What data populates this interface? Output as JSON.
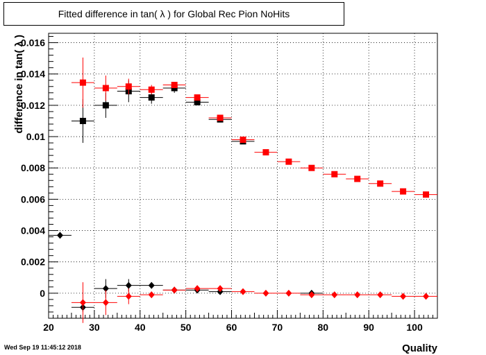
{
  "chart_data": {
    "type": "scatter",
    "title": "Fitted difference in tan( λ ) for Global Rec Pion NoHits",
    "xlabel": "Quality",
    "ylabel": "difference in tan( λ )",
    "xlim": [
      20,
      105
    ],
    "ylim": [
      -0.0016,
      0.0166
    ],
    "x_ticks": [
      20,
      30,
      40,
      50,
      60,
      70,
      80,
      90,
      100
    ],
    "y_ticks": [
      0,
      0.002,
      0.004,
      0.006,
      0.008,
      0.01,
      0.012,
      0.014,
      0.016
    ],
    "x_tick_labels": [
      "20",
      "30",
      "40",
      "50",
      "60",
      "70",
      "80",
      "90",
      "100"
    ],
    "y_tick_labels": [
      "0",
      "0.002",
      "0.004",
      "0.006",
      "0.008",
      "0.01",
      "0.012",
      "0.014",
      "0.016"
    ],
    "grid": true,
    "series": [
      {
        "marker": "square",
        "color": "#000000",
        "points": [
          {
            "x": 27.5,
            "y": 0.011,
            "yerr": 0.0014
          },
          {
            "x": 32.5,
            "y": 0.012,
            "yerr": 0.0008
          },
          {
            "x": 37.5,
            "y": 0.0129,
            "yerr": 0.0007
          },
          {
            "x": 42.5,
            "y": 0.0125,
            "yerr": 0.0004
          },
          {
            "x": 47.5,
            "y": 0.0131,
            "yerr": 0.0003
          },
          {
            "x": 52.5,
            "y": 0.0122,
            "yerr": 0.0002
          },
          {
            "x": 57.5,
            "y": 0.0111,
            "yerr": 0.0001
          },
          {
            "x": 62.5,
            "y": 0.0097,
            "yerr": 0.0001
          }
        ]
      },
      {
        "marker": "square",
        "color": "#ff0000",
        "points": [
          {
            "x": 27.5,
            "y": 0.01345,
            "yerr": 0.0016
          },
          {
            "x": 32.5,
            "y": 0.0131,
            "yerr": 0.0008
          },
          {
            "x": 37.5,
            "y": 0.0132,
            "yerr": 0.0005
          },
          {
            "x": 42.5,
            "y": 0.013,
            "yerr": 0.0003
          },
          {
            "x": 47.5,
            "y": 0.0133,
            "yerr": 0.0002
          },
          {
            "x": 52.5,
            "y": 0.0125,
            "yerr": 0.0001
          },
          {
            "x": 57.5,
            "y": 0.0112,
            "yerr": 0.0001
          },
          {
            "x": 62.5,
            "y": 0.0098,
            "yerr": 0.0001
          },
          {
            "x": 67.5,
            "y": 0.009,
            "yerr": 0.0001
          },
          {
            "x": 72.5,
            "y": 0.0084,
            "yerr": 0.0001
          },
          {
            "x": 77.5,
            "y": 0.008,
            "yerr": 0.0001
          },
          {
            "x": 82.5,
            "y": 0.0076,
            "yerr": 0.0001
          },
          {
            "x": 87.5,
            "y": 0.0073,
            "yerr": 0.0001
          },
          {
            "x": 92.5,
            "y": 0.007,
            "yerr": 0.0001
          },
          {
            "x": 97.5,
            "y": 0.0065,
            "yerr": 0.0001
          },
          {
            "x": 102.5,
            "y": 0.0063,
            "yerr": 0.0001
          }
        ]
      },
      {
        "marker": "diamond",
        "color": "#000000",
        "points": [
          {
            "x": 22.5,
            "y": 0.0037,
            "yerr": 0.0
          },
          {
            "x": 27.5,
            "y": -0.0009,
            "yerr": 0.0003
          },
          {
            "x": 32.5,
            "y": 0.0003,
            "yerr": 0.0006
          },
          {
            "x": 37.5,
            "y": 0.0005,
            "yerr": 0.0004
          },
          {
            "x": 42.5,
            "y": 0.0005,
            "yerr": 0.0002
          },
          {
            "x": 47.5,
            "y": 0.0002,
            "yerr": 0.0002
          },
          {
            "x": 52.5,
            "y": 0.0002,
            "yerr": 0.0001
          },
          {
            "x": 57.5,
            "y": 0.0001,
            "yerr": 0.0001
          },
          {
            "x": 77.5,
            "y": 0.0,
            "yerr": 0.0001
          }
        ]
      },
      {
        "marker": "diamond",
        "color": "#ff0000",
        "points": [
          {
            "x": 27.5,
            "y": -0.0006,
            "yerr": 0.0013
          },
          {
            "x": 32.5,
            "y": -0.0006,
            "yerr": 0.0008
          },
          {
            "x": 37.5,
            "y": -0.0002,
            "yerr": 0.0005
          },
          {
            "x": 42.5,
            "y": -0.0001,
            "yerr": 0.0002
          },
          {
            "x": 47.5,
            "y": 0.0002,
            "yerr": 0.0002
          },
          {
            "x": 52.5,
            "y": 0.0003,
            "yerr": 0.0001
          },
          {
            "x": 57.5,
            "y": 0.0003,
            "yerr": 0.0001
          },
          {
            "x": 62.5,
            "y": 0.0001,
            "yerr": 0.0001
          },
          {
            "x": 67.5,
            "y": 0.0,
            "yerr": 0.0001
          },
          {
            "x": 72.5,
            "y": 0.0,
            "yerr": 0.0001
          },
          {
            "x": 77.5,
            "y": -0.0001,
            "yerr": 0.0001
          },
          {
            "x": 82.5,
            "y": -0.0001,
            "yerr": 0.0001
          },
          {
            "x": 87.5,
            "y": -0.0001,
            "yerr": 0.0001
          },
          {
            "x": 92.5,
            "y": -0.0001,
            "yerr": 0.0001
          },
          {
            "x": 97.5,
            "y": -0.0002,
            "yerr": 0.0001
          },
          {
            "x": 102.5,
            "y": -0.0002,
            "yerr": 0.0001
          }
        ]
      }
    ]
  },
  "footer": {
    "timestamp": "Wed Sep 19 11:45:12 2018"
  }
}
